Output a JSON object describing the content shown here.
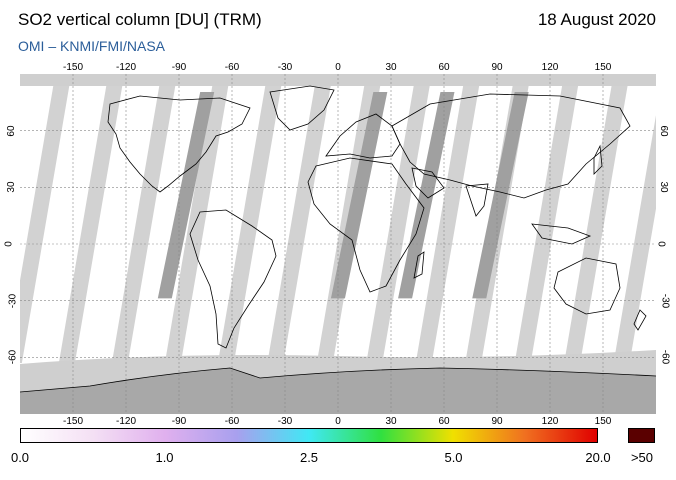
{
  "header": {
    "title": "SO2 vertical column [DU] (TRM)",
    "date": "18 August 2020",
    "credit": "OMI  –  KNMI/FMI/NASA"
  },
  "map": {
    "projection": "equirectangular",
    "lon_range": [
      -180,
      180
    ],
    "lat_range": [
      -90,
      90
    ],
    "lon_ticks": [
      "-150",
      "-120",
      "-90",
      "-60",
      "-30",
      "0",
      "30",
      "60",
      "90",
      "120",
      "150"
    ],
    "lat_ticks": [
      "60",
      "30",
      "0",
      "-30",
      "-60"
    ],
    "background_color": "#ffffff",
    "swath_gap_color": "#d2d2d2",
    "dark_swath_color": "#a0a0a0",
    "polar_color": "#cfcfcf",
    "coastline_color": "#000000"
  },
  "colorbar": {
    "labels": [
      "0.0",
      "1.0",
      "2.5",
      "5.0",
      "20.0"
    ],
    "over_label": ">50",
    "colors": [
      "#ffffff",
      "#f4e0f4",
      "#e0b0ee",
      "#a8a0ee",
      "#40e8f4",
      "#30e040",
      "#f0e000",
      "#f07020",
      "#e00000"
    ],
    "over_color": "#5a0000"
  }
}
